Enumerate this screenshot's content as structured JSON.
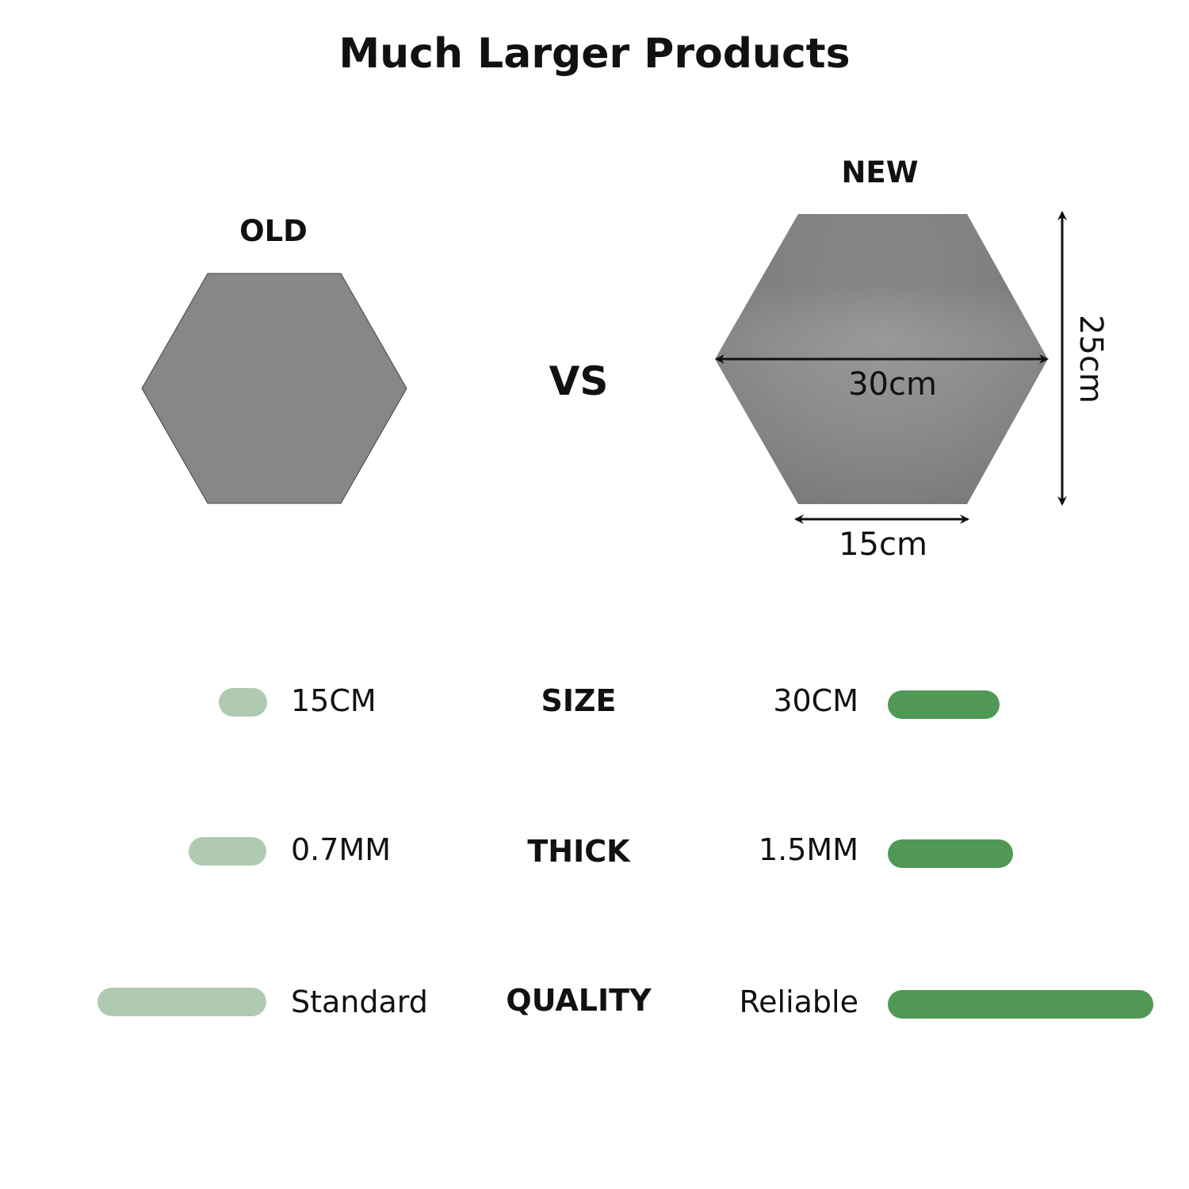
{
  "title": "Much Larger Products",
  "vs_label": "VS",
  "old": {
    "label": "OLD",
    "color": "#878787"
  },
  "new": {
    "label": "NEW",
    "color": "#8a8a8a",
    "dim_width": "30cm",
    "dim_height": "25cm",
    "dim_base": "15cm"
  },
  "comparison": [
    {
      "label": "SIZE",
      "old_value": "15CM",
      "new_value": "30CM"
    },
    {
      "label": "THICK",
      "old_value": "0.7MM",
      "new_value": "1.5MM"
    },
    {
      "label": "QUALITY",
      "old_value": "Standard",
      "new_value": "Reliable"
    }
  ],
  "colors": {
    "old_bar": "#b0cab2",
    "new_bar": "#519856"
  }
}
